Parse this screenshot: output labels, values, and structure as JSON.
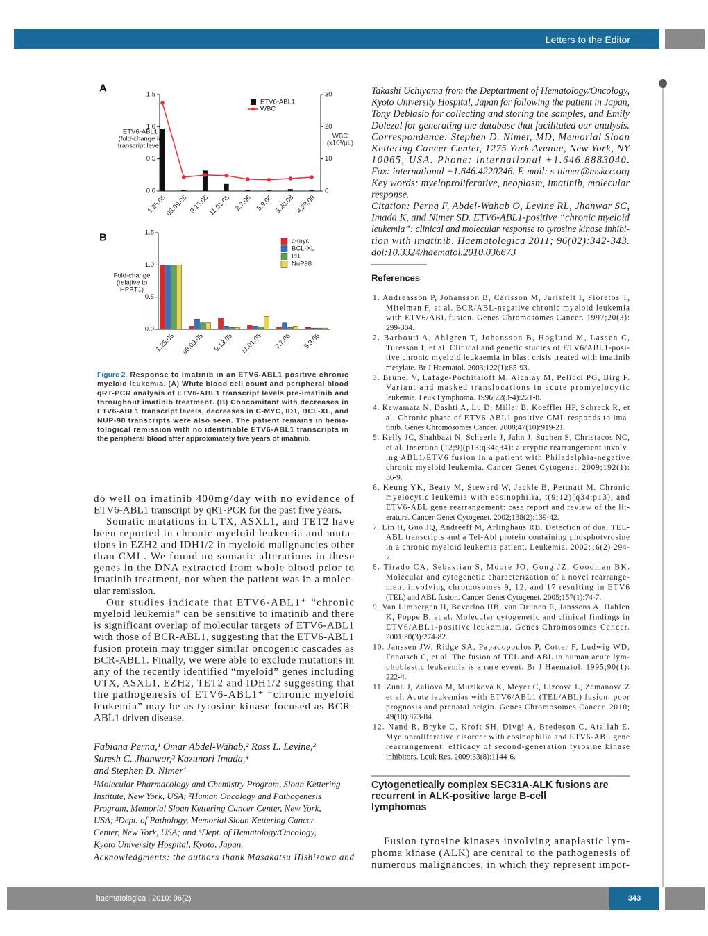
{
  "header": {
    "section": "Letters to the Editor"
  },
  "chart_data": [
    {
      "type": "combo",
      "panel": "A",
      "categories": [
        "1.25.05",
        "08.09.05",
        "9.13.05",
        "11.01.05",
        "2.7.06",
        "5.9.06",
        "5.20.08",
        "4.28.09"
      ],
      "ylabel": [
        "ETV6-ABL1",
        "(fold-change in",
        "transcript level)"
      ],
      "y2label": [
        "WBC",
        "(x10³/µL)"
      ],
      "series": [
        {
          "name": "ETV6-ABL1",
          "type": "bar",
          "color": "#111111",
          "values": [
            0.97,
            0.02,
            0.32,
            0.11,
            0.02,
            0.01,
            0.03,
            0.02
          ]
        },
        {
          "name": "WBC",
          "type": "line",
          "axis": "y2",
          "color": "#e8323a",
          "values": [
            27.4,
            4.3,
            5.0,
            4.8,
            3.7,
            3.5,
            3.9,
            4.3
          ]
        }
      ],
      "ylim": [
        0,
        1.5
      ],
      "yticks": [
        {
          "value": 0,
          "label": "0.0"
        },
        0.5,
        {
          "value": 1,
          "label": "1.0"
        },
        1.5
      ],
      "y2lim": [
        0,
        30
      ],
      "y2ticks": [
        0,
        10,
        20,
        30
      ]
    },
    {
      "type": "bar",
      "panel": "B",
      "categories": [
        "1.25.05",
        "08.09.05",
        "9.13.05",
        "11.01.05",
        "2.7.06",
        "5.9.06"
      ],
      "ylabel": [
        "Fold-change",
        "(relative to",
        "HPRT1)"
      ],
      "series": [
        {
          "name": "c-myc",
          "color": "#e3262a",
          "values": [
            1.0,
            0.05,
            0.18,
            0.06,
            0.04,
            0.03
          ]
        },
        {
          "name": "BCL-XL",
          "color": "#3a6fc4",
          "values": [
            1.0,
            0.16,
            0.05,
            0.05,
            0.1,
            0.02
          ]
        },
        {
          "name": "Id1",
          "color": "#5aa55a",
          "values": [
            1.0,
            0.1,
            0.03,
            0.04,
            0.03,
            0.02
          ]
        },
        {
          "name": "NuP98",
          "color": "#e6d84a",
          "values": [
            1.0,
            0.1,
            0.03,
            0.2,
            0.05,
            0.02
          ]
        }
      ],
      "ylim": [
        0,
        1.5
      ],
      "yticks": [
        {
          "value": 0,
          "label": "0.0"
        },
        0.5,
        {
          "value": 1,
          "label": "1.0"
        },
        1.5
      ]
    }
  ],
  "caption": {
    "label": "Figure 2.",
    "lines": [
      "Response to Imatinib in an ETV6-ABL1 positive chronic",
      "myeloid leukemia. (A) White blood cell count and peripheral blood",
      "qRT-PCR analysis of ETV6-ABL1 transcript levels pre-imatinib and",
      "throughout imatinib treatment. (B) Concomitant with decreases in",
      "ETV6-ABL1 transcript levels, decreases in C-MYC, ID1, BCL-XL, and",
      "NUP-98 transcripts were also seen. The patient remains in hema-",
      "tological remission with no identifiable ETV6-ABL1 transcripts in",
      "the peripheral blood after approximately five years of imatinib."
    ]
  },
  "body": {
    "paragraphs": [
      [
        "do well on imatinib 400mg/day with no evidence of",
        "ETV6-ABL1 transcript by qRT-PCR for the past five years."
      ],
      [
        "Somatic mutations in UTX, ASXL1, and TET2 have",
        "been reported in chronic myeloid leukemia and muta-",
        "tions in EZH2 and IDH1/2 in myeloid malignancies other",
        "than CML. We found no somatic alterations in these",
        "genes in the DNA extracted from whole blood prior to",
        "imatinib treatment, nor when the patient was in a molec-",
        "ular remission."
      ],
      [
        "Our studies indicate that ETV6-ABL1⁺ “chronic",
        "myeloid leukemia” can be sensitive to imatinib and there",
        "is significant overlap of molecular targets of ETV6-ABL1",
        "with those of BCR-ABL1, suggesting that the ETV6-ABL1",
        "fusion protein may trigger similar oncogenic cascades as",
        "BCR-ABL1. Finally, we were able to exclude mutations in",
        "any of the recently identified “myeloid” genes including",
        "UTX, ASXL1, EZH2, TET2 and IDH1/2 suggesting that",
        "the pathogenesis of ETV6-ABL1⁺ “chronic myeloid",
        "leukemia” may be as tyrosine kinase focused as BCR-",
        "ABL1 driven disease."
      ]
    ]
  },
  "authors": {
    "lines": [
      "Fabiana Perna,¹ Omar Abdel-Wahab,² Ross L. Levine,²",
      "Suresh C. Jhanwar,³ Kazunori Imada,⁴",
      "and Stephen D. Nimer¹"
    ]
  },
  "affiliations": {
    "lines": [
      "¹Molecular Pharmacology and Chemistry Program, Sloan Kettering",
      "Institute, New York, USA; ²Human Oncology and Pathogenesis",
      "Program, Memorial Sloan Kettering Cancer Center, New York,",
      "USA; ³Dept. of Pathology, Memorial Sloan Kettering Cancer",
      "Center, New York, USA; and ⁴Dept. of Hematology/Oncology,",
      "Kyoto University Hospital, Kyoto, Japan."
    ]
  },
  "acknowledgments": {
    "lines": [
      "Acknowledgments: the authors thank Masakatsu Hishizawa and",
      "Takashi Uchiyama from the Deptartment of Hematology/Oncology,",
      "Kyoto University Hospital, Japan for following the patient in Japan,",
      "Tony Deblasio for collecting and storing the samples, and Emily",
      "Dolezal for generating the database that facilitated our analysis."
    ]
  },
  "correspondence": {
    "lines": [
      "Correspondence: Stephen D. Nimer, MD, Memorial Sloan",
      "Kettering Cancer Center, 1275 York Avenue, New York, NY",
      "10065, USA. Phone: international +1.646.8883040.",
      "Fax: international +1.646.4220246. E-mail: s-nimer@mskcc.org"
    ]
  },
  "key_words": {
    "lines": [
      "Key words: myeloproliferative, neoplasm, imatinib, molecular",
      "response."
    ]
  },
  "citation": {
    "lines": [
      "Citation: Perna F, Abdel-Wahab O, Levine RL, Jhanwar SC,",
      "Imada K, and Nimer SD. ETV6-ABL1-positive “chronic myeloid",
      "leukemia”: clinical and molecular response to tyrosine kinase inhibi-",
      "tion with imatinib. Haematologica 2011; 96(02):342-343.",
      "doi:10.3324/haematol.2010.036673"
    ]
  },
  "references": {
    "heading": "References",
    "items": [
      [
        "1. Andreasson P, Johansson B, Carlsson M, Jarlsfelt I, Fioretos T,",
        "Mitelman F, et al. BCR/ABL-negative chronic myeloid leukemia",
        "with ETV6/ABL fusion. Genes Chromosomes Cancer. 1997;20(3):",
        "299-304."
      ],
      [
        "2. Barbouti A, Ahlgren T, Johansson B, Hoglund M, Lassen C,",
        "Turesson I, et al. Clinical and genetic studies of ETV6/ABL1-posi-",
        "tive chronic myeloid leukaemia in blast crisis treated with imatinib",
        "mesylate. Br J Haematol. 2003;122(1):85-93."
      ],
      [
        "3. Brunel V, Lafage-Pochitaloff M, Alcalay M, Pelicci PG, Birg F.",
        "Variant and masked translocations in acute promyelocytic",
        "leukemia. Leuk Lymphoma. 1996;22(3-4):221-8."
      ],
      [
        "4. Kawamata N, Dashti A, Lu D, Miller B, Koeffler HP, Schreck R, et",
        "al. Chronic phase of ETV6-ABL1 positive CML responds to ima-",
        "tinib. Genes Chromosomes Cancer. 2008;47(10):919-21."
      ],
      [
        "5. Kelly JC, Shahbazi N, Scheerle J, Jahn J, Suchen S, Christacos NC,",
        "et al. Insertion (12;9)(p13;q34q34): a cryptic rearrangement involv-",
        "ing ABL1/ETV6 fusion in a patient with Philadelphia-negative",
        "chronic myeloid leukemia. Cancer Genet Cytogenet. 2009;192(1):",
        "36-9."
      ],
      [
        "6. Keung YK, Beaty M, Steward W, Jackle B, Pettnati M. Chronic",
        "myelocytic leukemia with eosinophilia, t(9;12)(q34;p13), and",
        "ETV6-ABL gene rearrangement: case report and review of the lit-",
        "erature. Cancer Genet Cytogenet. 2002;138(2):139-42."
      ],
      [
        "7. Lin H, Guo JQ, Andreeff M, Arlinghaus RB. Detection of dual TEL-",
        "ABL transcripts and a Tel-Abl protein containing phosphotyrosine",
        "in a chronic myeloid leukemia patient. Leukemia. 2002;16(2):294-",
        "7."
      ],
      [
        "8. Tirado CA, Sebastian S, Moore JO, Gong JZ, Goodman BK.",
        "Molecular and cytogenetic characterization of a novel rearrange-",
        "ment involving chromosomes 9, 12, and 17 resulting in ETV6",
        "(TEL) and ABL fusion. Cancer Genet Cytogenet. 2005;157(1):74-7."
      ],
      [
        "9. Van Limbergen H, Beverloo HB, van Drunen E, Janssens A, Hahlen",
        "K, Poppe B, et al. Molecular cytogenetic and clinical findings in",
        "ETV6/ABL1-positive leukemia. Genes Chromosomes Cancer.",
        "2001;30(3):274-82."
      ],
      [
        "10. Janssen JW, Ridge SA, Papadopoulos P, Cotter F, Ludwig WD,",
        "Fonatsch C, et al. The fusion of TEL and ABL in human acute lym-",
        "phoblastic leukaemia is a rare event. Br J Haematol. 1995;90(1):",
        "222-4."
      ],
      [
        "11. Zuna J, Zaliova M, Muzikova K, Meyer C, Lizcova L, Zemanova Z",
        "et al. Acute leukemias with ETV6/ABL1 (TEL/ABL) fusion: poor",
        "prognosis and prenatal origin. Genes Chromosomes Cancer. 2010;",
        "49(10):873-84."
      ],
      [
        "12. Nand R, Bryke C, Kroft SH, Divgi A, Bredeson C, Atallah E.",
        "Myeloproliferative disorder with eosinophilia and ETV6-ABL gene",
        "rearrangement: efficacy of second-generation tyrosine kinase",
        "inhibitors. Leuk Res. 2009;33(8):1144-6."
      ]
    ]
  },
  "next_article": {
    "title_lines": [
      "Cytogenetically complex SEC31A-ALK fusions are",
      "recurrent in ALK-positive large B-cell",
      "lymphomas"
    ],
    "lines": [
      "Fusion tyrosine kinases involving anaplastic lym-",
      "phoma kinase (ALK) are central to the pathogenesis of",
      "numerous malignancies, in which they represent impor-"
    ]
  },
  "footer": {
    "journal": "haematologica | 2010; 96(2)",
    "page": "343"
  }
}
